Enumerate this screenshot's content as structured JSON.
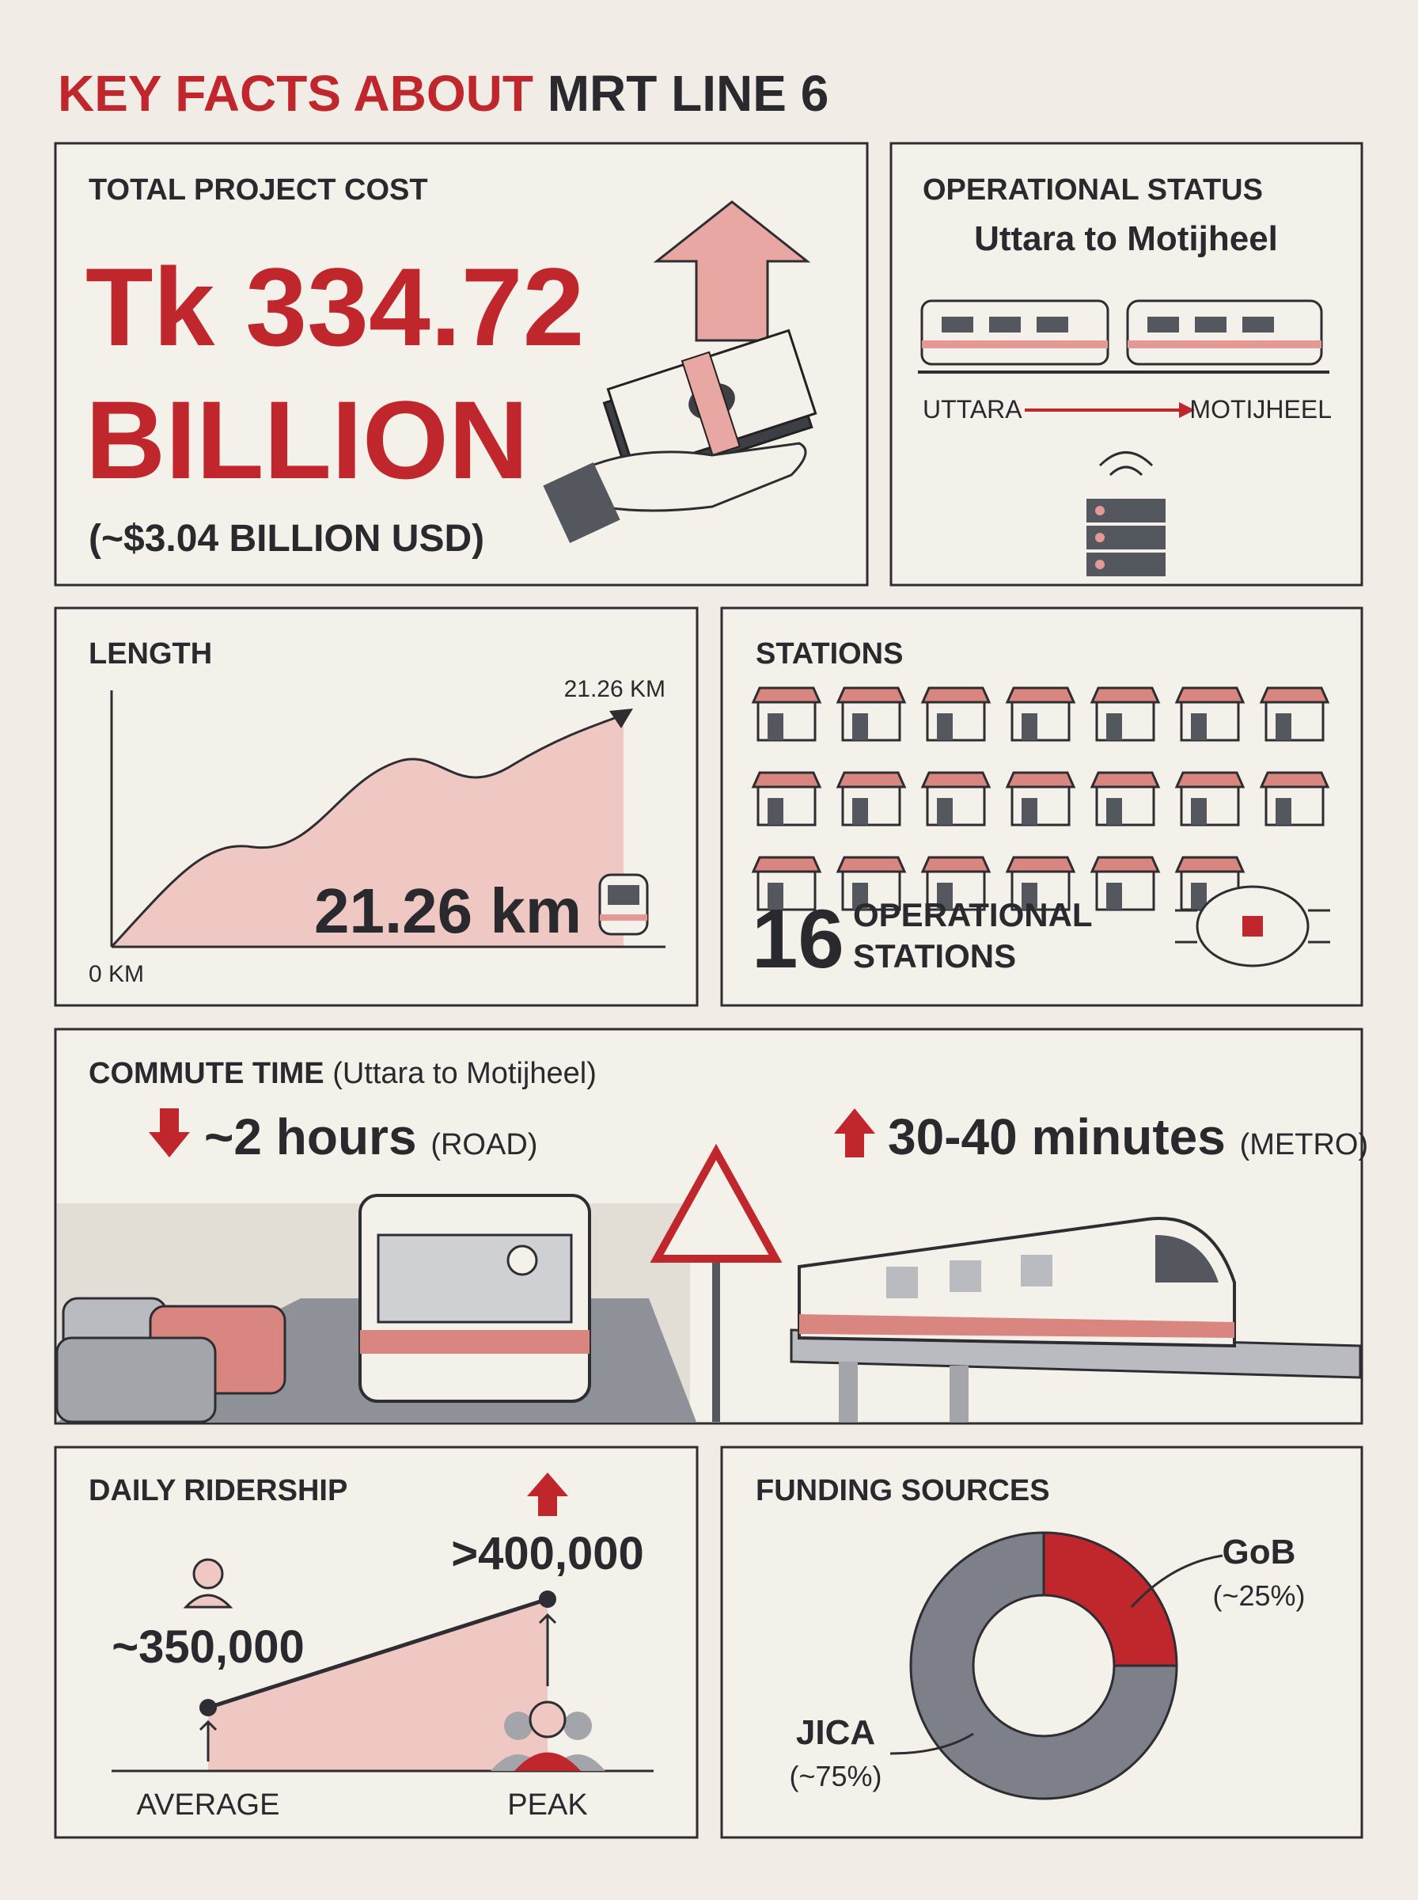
{
  "header": {
    "title_start": "KEY FACTS ABOUT",
    "title_end": "MRT LINE 6"
  },
  "cost": {
    "label": "TOTAL PROJECT COST",
    "amount": "Tk 334.72",
    "unit": "BILLION",
    "usd": "(~$3.04 BILLION USD)"
  },
  "status": {
    "label": "OPERATIONAL STATUS",
    "route": "Uttara to Motijheel",
    "from": "UTTARA",
    "to": "MOTIJHEEL"
  },
  "length": {
    "label": "LENGTH",
    "start_label": "0 KM",
    "end_label": "21.26 KM",
    "value_label": "21.26 km"
  },
  "stations": {
    "label": "STATIONS",
    "count": 16,
    "caption": [
      "OPERATIONAL",
      "STATIONS"
    ]
  },
  "commute": {
    "label": "COMMUTE TIME",
    "route": "(Uttara to Motijheel)",
    "road": {
      "time": "~2 hours",
      "mode": "(ROAD)"
    },
    "metro": {
      "time": "30-40 minutes",
      "mode": "(METRO)"
    }
  },
  "ridership": {
    "label": "DAILY RIDERSHIP",
    "average": {
      "value": "~350,000",
      "label": "AVERAGE"
    },
    "peak": {
      "value": ">400,000",
      "label": "PEAK"
    }
  },
  "chart_data": {
    "type": "pie",
    "title": "FUNDING SOURCES",
    "categories": [
      "GoB",
      "JICA"
    ],
    "values": [
      25,
      75
    ],
    "value_labels": [
      "(~25%)",
      "(~75%)"
    ],
    "colors": [
      "#c0272d",
      "#7d8089"
    ]
  }
}
